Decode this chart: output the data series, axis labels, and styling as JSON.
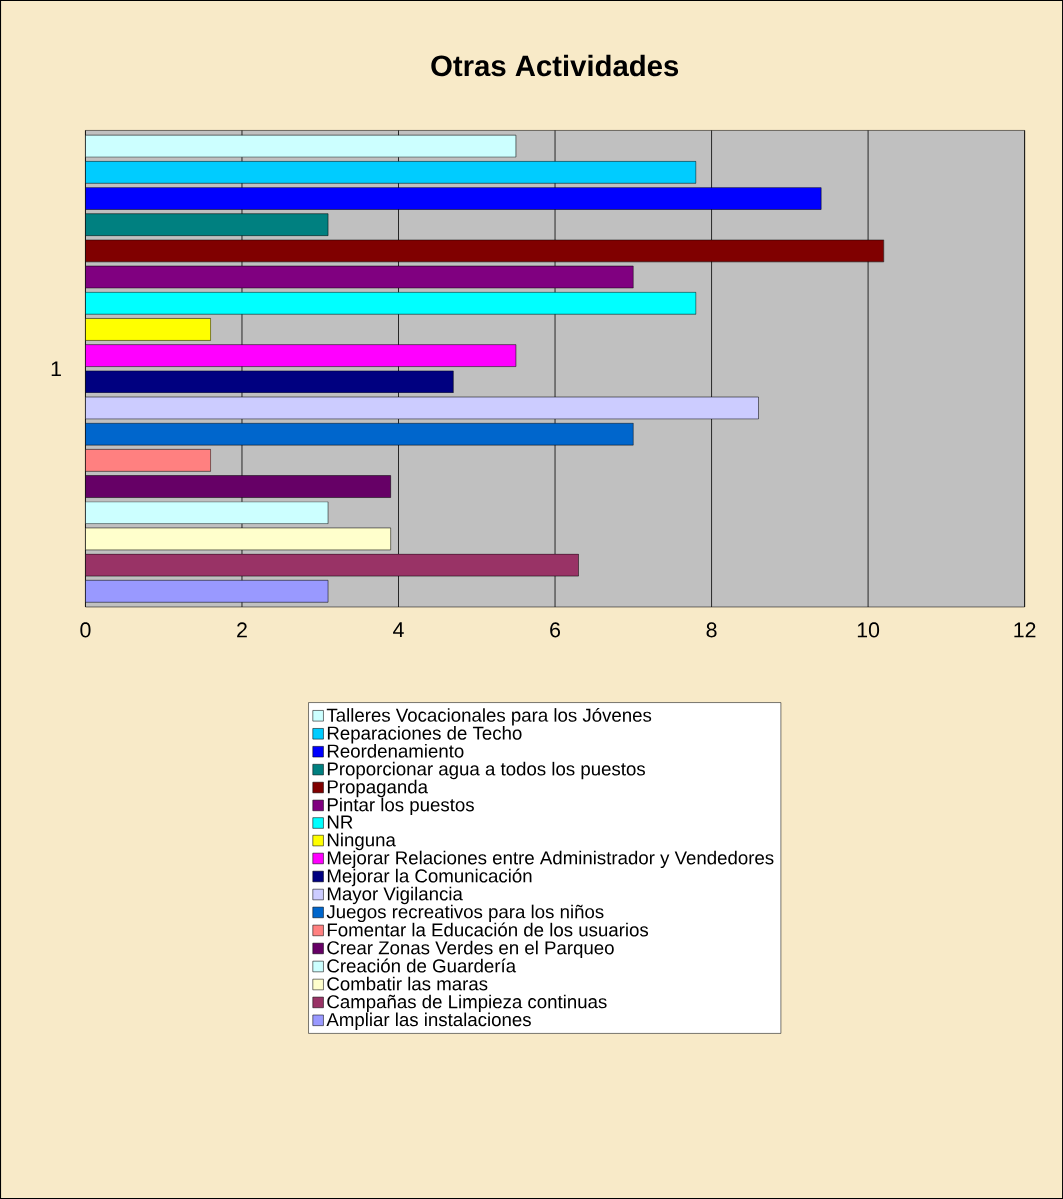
{
  "chart_data": {
    "type": "bar",
    "title": "Otras Actividades",
    "orientation": "horizontal",
    "ylabel": "1",
    "categories": [
      null,
      null,
      null,
      null,
      null,
      null,
      null,
      null,
      null,
      null,
      null,
      null,
      null,
      null,
      null,
      null,
      null,
      null
    ],
    "series": [
      {
        "name": "Talleres Vocacionales para los Jóvenes",
        "color": "#ccffff",
        "values": [
          5.5,
          null,
          null,
          null,
          null,
          null,
          null,
          null,
          null,
          null,
          null,
          null,
          null,
          null,
          null,
          null,
          null,
          null
        ]
      },
      {
        "name": "Reparaciones de Techo",
        "color": "#00ccff",
        "values": [
          null,
          7.8,
          null,
          null,
          null,
          null,
          null,
          null,
          null,
          null,
          null,
          null,
          null,
          null,
          null,
          null,
          null,
          null
        ]
      },
      {
        "name": "Reordenamiento",
        "color": "#0000ff",
        "values": [
          null,
          null,
          9.4,
          null,
          null,
          null,
          null,
          null,
          null,
          null,
          null,
          null,
          null,
          null,
          null,
          null,
          null,
          null
        ]
      },
      {
        "name": "Proporcionar agua a todos los puestos",
        "color": "#008080",
        "values": [
          null,
          null,
          null,
          3.1,
          null,
          null,
          null,
          null,
          null,
          null,
          null,
          null,
          null,
          null,
          null,
          null,
          null,
          null
        ]
      },
      {
        "name": "Propaganda",
        "color": "#800000",
        "values": [
          null,
          null,
          null,
          null,
          10.2,
          null,
          null,
          null,
          null,
          null,
          null,
          null,
          null,
          null,
          null,
          null,
          null,
          null
        ]
      },
      {
        "name": "Pintar los puestos",
        "color": "#800080",
        "values": [
          null,
          null,
          null,
          null,
          null,
          7.0,
          null,
          null,
          null,
          null,
          null,
          null,
          null,
          null,
          null,
          null,
          null,
          null
        ]
      },
      {
        "name": "NR",
        "color": "#00ffff",
        "values": [
          null,
          null,
          null,
          null,
          null,
          null,
          7.8,
          null,
          null,
          null,
          null,
          null,
          null,
          null,
          null,
          null,
          null,
          null
        ]
      },
      {
        "name": "Ninguna",
        "color": "#ffff00",
        "values": [
          null,
          null,
          null,
          null,
          null,
          null,
          null,
          1.6,
          null,
          null,
          null,
          null,
          null,
          null,
          null,
          null,
          null,
          null
        ]
      },
      {
        "name": "Mejorar Relaciones entre Administrador y Vendedores",
        "color": "#ff00ff",
        "values": [
          null,
          null,
          null,
          null,
          null,
          null,
          null,
          null,
          5.5,
          null,
          null,
          null,
          null,
          null,
          null,
          null,
          null,
          null
        ]
      },
      {
        "name": "Mejorar la Comunicación",
        "color": "#000080",
        "values": [
          null,
          null,
          null,
          null,
          null,
          null,
          null,
          null,
          null,
          4.7,
          null,
          null,
          null,
          null,
          null,
          null,
          null,
          null
        ]
      },
      {
        "name": "Mayor Vigilancia",
        "color": "#ccccff",
        "values": [
          null,
          null,
          null,
          null,
          null,
          null,
          null,
          null,
          null,
          null,
          8.6,
          null,
          null,
          null,
          null,
          null,
          null,
          null
        ]
      },
      {
        "name": "Juegos recreativos para los niños",
        "color": "#0066cc",
        "values": [
          null,
          null,
          null,
          null,
          null,
          null,
          null,
          null,
          null,
          null,
          null,
          7.0,
          null,
          null,
          null,
          null,
          null,
          null
        ]
      },
      {
        "name": "Fomentar la Educación de los usuarios",
        "color": "#ff8080",
        "values": [
          null,
          null,
          null,
          null,
          null,
          null,
          null,
          null,
          null,
          null,
          null,
          null,
          1.6,
          null,
          null,
          null,
          null,
          null
        ]
      },
      {
        "name": "Crear Zonas Verdes en el Parqueo",
        "color": "#660066",
        "values": [
          null,
          null,
          null,
          null,
          null,
          null,
          null,
          null,
          null,
          null,
          null,
          null,
          null,
          3.9,
          null,
          null,
          null,
          null
        ]
      },
      {
        "name": "Creación de Guardería",
        "color": "#ccffff",
        "values": [
          null,
          null,
          null,
          null,
          null,
          null,
          null,
          null,
          null,
          null,
          null,
          null,
          null,
          null,
          3.1,
          null,
          null,
          null
        ]
      },
      {
        "name": "Combatir las maras",
        "color": "#ffffcc",
        "values": [
          null,
          null,
          null,
          null,
          null,
          null,
          null,
          null,
          null,
          null,
          null,
          null,
          null,
          null,
          null,
          3.9,
          null,
          null
        ]
      },
      {
        "name": "Campañas de Limpieza continuas",
        "color": "#993366",
        "values": [
          null,
          null,
          null,
          null,
          null,
          null,
          null,
          null,
          null,
          null,
          null,
          null,
          null,
          null,
          null,
          null,
          6.3,
          null
        ]
      },
      {
        "name": "Ampliar las instalaciones",
        "color": "#9999ff",
        "values": [
          null,
          null,
          null,
          null,
          null,
          null,
          null,
          null,
          null,
          null,
          null,
          null,
          null,
          null,
          null,
          null,
          null,
          3.1
        ]
      }
    ],
    "xlim": [
      0,
      12
    ],
    "xticks": [
      0,
      2,
      4,
      6,
      8,
      10,
      12
    ],
    "grid": "x",
    "legend": "bottom"
  }
}
